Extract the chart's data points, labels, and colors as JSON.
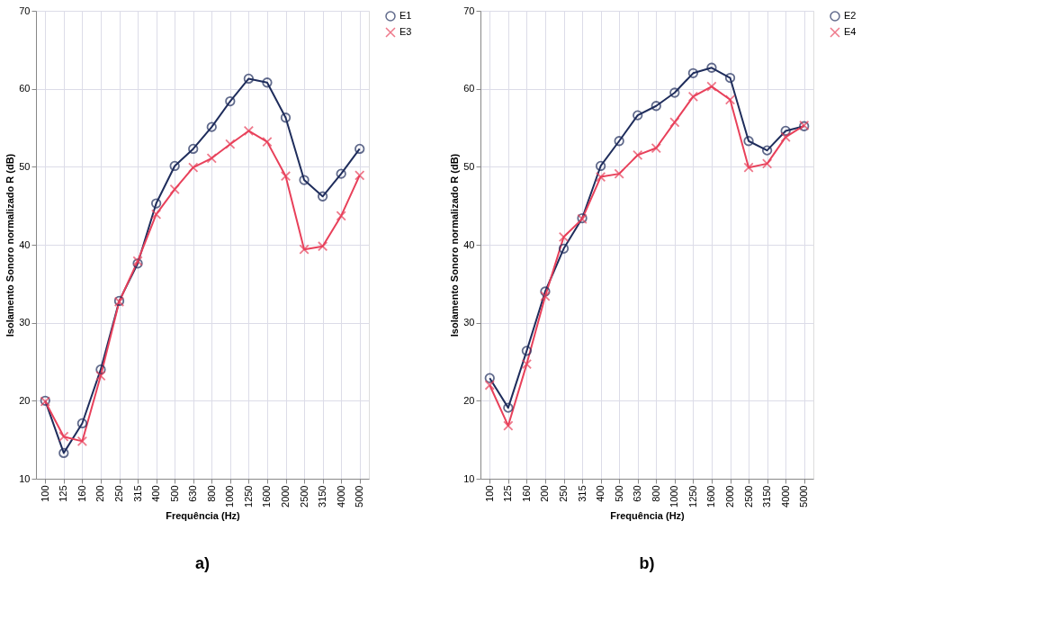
{
  "chart_data": [
    {
      "type": "line",
      "xlabel": "Frequência (Hz)",
      "ylabel": "Isolamento Sonoro normalizado R (dB)",
      "categories": [
        "100",
        "125",
        "160",
        "200",
        "250",
        "315",
        "400",
        "500",
        "630",
        "800",
        "1000",
        "1250",
        "1600",
        "2000",
        "2500",
        "3150",
        "4000",
        "5000"
      ],
      "series": [
        {
          "name": "E1",
          "color": "#1f2d5c",
          "marker": "circle",
          "values": [
            20,
            13.3,
            17.1,
            24,
            32.8,
            37.6,
            45.3,
            50.1,
            52.3,
            55.1,
            58.4,
            61.3,
            60.8,
            56.3,
            48.3,
            46.2,
            49.1,
            52.3
          ]
        },
        {
          "name": "E3",
          "color": "#e8405a",
          "marker": "cross",
          "values": [
            19.9,
            15.4,
            14.8,
            23.2,
            32.7,
            37.9,
            43.9,
            47.1,
            49.9,
            51.1,
            52.9,
            54.6,
            53.2,
            48.8,
            39.4,
            39.8,
            43.7,
            48.9
          ]
        }
      ],
      "ylim": [
        10,
        70
      ],
      "yticks": [
        10,
        20,
        30,
        40,
        50,
        60,
        70
      ],
      "grid": true,
      "legend": "right",
      "annotations": [
        "a)"
      ]
    },
    {
      "type": "line",
      "xlabel": "Frequência (Hz)",
      "ylabel": "Isolamento Sonoro normalizado R (dB)",
      "categories": [
        "100",
        "125",
        "160",
        "200",
        "250",
        "315",
        "400",
        "500",
        "630",
        "800",
        "1000",
        "1250",
        "1600",
        "2000",
        "2500",
        "3150",
        "4000",
        "5000"
      ],
      "series": [
        {
          "name": "E2",
          "color": "#1f2d5c",
          "marker": "circle",
          "values": [
            22.9,
            19.1,
            26.4,
            34,
            39.5,
            43.4,
            50.1,
            53.3,
            56.6,
            57.8,
            59.5,
            62,
            62.7,
            61.4,
            53.3,
            52.1,
            54.6,
            55.2
          ]
        },
        {
          "name": "E4",
          "color": "#e8405a",
          "marker": "cross",
          "values": [
            22,
            16.8,
            24.7,
            33.4,
            41,
            43.3,
            48.7,
            49.1,
            51.5,
            52.4,
            55.7,
            59,
            60.3,
            58.6,
            49.9,
            50.4,
            53.8,
            55.3
          ]
        }
      ],
      "ylim": [
        10,
        70
      ],
      "yticks": [
        10,
        20,
        30,
        40,
        50,
        60,
        70
      ],
      "grid": true,
      "legend": "right",
      "annotations": [
        "b)"
      ]
    }
  ]
}
